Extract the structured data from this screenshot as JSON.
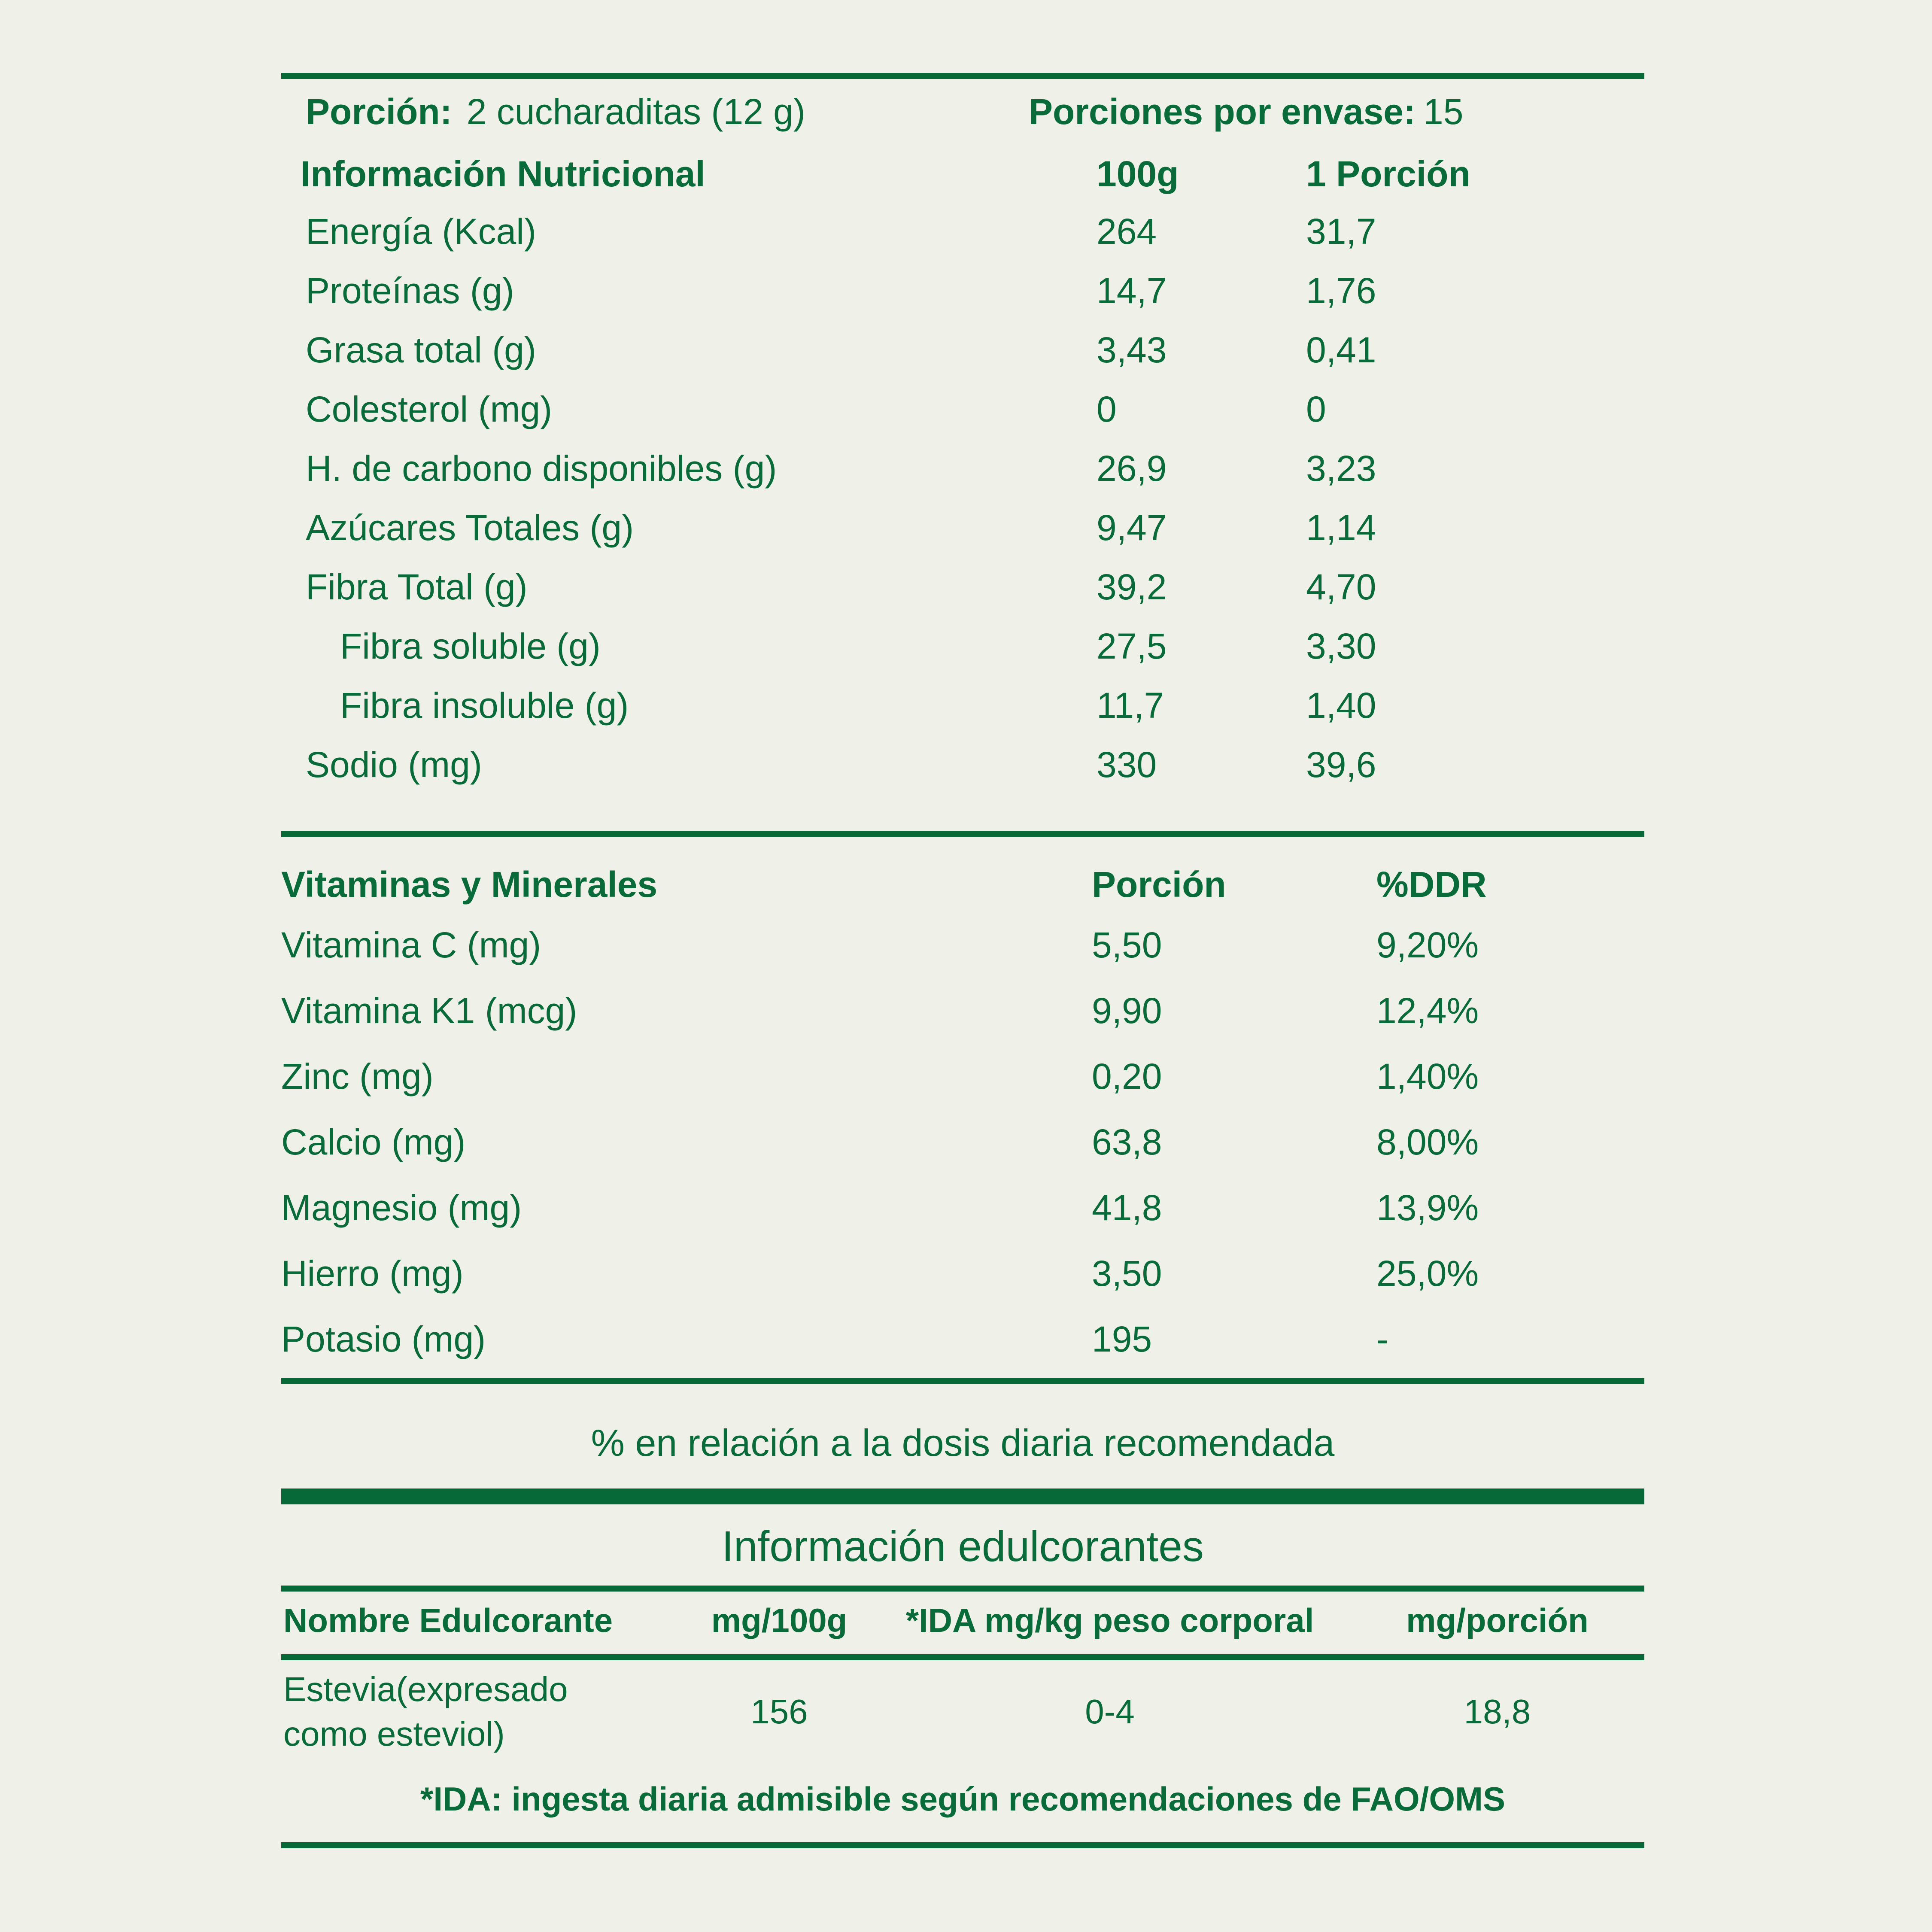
{
  "colors": {
    "background": "#EFF1E8",
    "green_text": "#0A6B3A",
    "green_rule": "#066937"
  },
  "serving": {
    "label": "Porción:",
    "value": "2 cucharaditas (12 g)",
    "per_container_label": "Porciones por envase:",
    "per_container_value": "15"
  },
  "nutrition_table": {
    "title": "Información Nutricional",
    "col_100g": "100g",
    "col_portion": "1 Porción",
    "rows": [
      {
        "label": "Energía (Kcal)",
        "per100": "264",
        "portion": "31,7"
      },
      {
        "label": "Proteínas (g)",
        "per100": "14,7",
        "portion": "1,76"
      },
      {
        "label": "Grasa total (g)",
        "per100": "3,43",
        "portion": "0,41"
      },
      {
        "label": "Colesterol (mg)",
        "per100": "0",
        "portion": "0"
      },
      {
        "label": "H. de carbono disponibles (g)",
        "per100": "26,9",
        "portion": "3,23"
      },
      {
        "label": "Azúcares Totales (g)",
        "per100": "9,47",
        "portion": "1,14"
      },
      {
        "label": "Fibra Total (g)",
        "per100": "39,2",
        "portion": "4,70"
      },
      {
        "label": "Fibra soluble (g)",
        "per100": "27,5",
        "portion": "3,30"
      },
      {
        "label": "Fibra insoluble (g)",
        "per100": "11,7",
        "portion": "1,40"
      },
      {
        "label": "Sodio (mg)",
        "per100": "330",
        "portion": "39,6"
      }
    ]
  },
  "vitamins_table": {
    "title": "Vitaminas y Minerales",
    "col_portion": "Porción",
    "col_ddr": "%DDR",
    "rows": [
      {
        "label": "Vitamina C (mg)",
        "portion": "5,50",
        "ddr": "9,20%"
      },
      {
        "label": "Vitamina K1 (mcg)",
        "portion": "9,90",
        "ddr": "12,4%"
      },
      {
        "label": "Zinc (mg)",
        "portion": "0,20",
        "ddr": "1,40%"
      },
      {
        "label": "Calcio (mg)",
        "portion": "63,8",
        "ddr": "8,00%"
      },
      {
        "label": "Magnesio (mg)",
        "portion": "41,8",
        "ddr": "13,9%"
      },
      {
        "label": "Hierro (mg)",
        "portion": "3,50",
        "ddr": "25,0%"
      },
      {
        "label": "Potasio (mg)",
        "portion": "195",
        "ddr": "-"
      }
    ]
  },
  "ddr_note": "% en relación a la dosis diaria recomendada",
  "sweeteners": {
    "title": "Información edulcorantes",
    "col_name": "Nombre Edulcorante",
    "col_mg100g": "mg/100g",
    "col_ida": "*IDA mg/kg peso corporal",
    "col_mgportion": "mg/porción",
    "row": {
      "name": "Estevia(expresado como esteviol)",
      "mg_100g": "156",
      "ida": "0-4",
      "mg_portion": "18,8"
    },
    "footnote": "*IDA: ingesta diaria admisible según recomendaciones de FAO/OMS"
  }
}
